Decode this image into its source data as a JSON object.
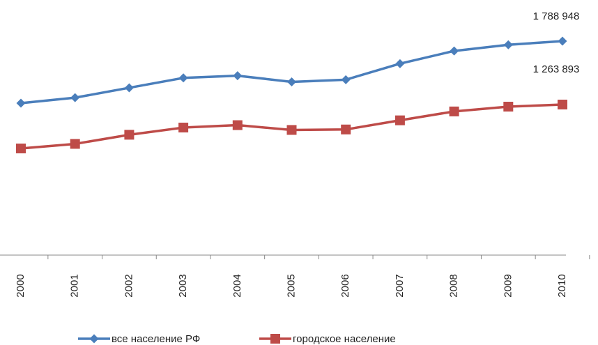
{
  "chart_data": {
    "type": "line",
    "title": "",
    "xlabel": "",
    "ylabel": "",
    "categories": [
      "2000",
      "2001",
      "2002",
      "2003",
      "2004",
      "2005",
      "2006",
      "2007",
      "2008",
      "2009",
      "2010"
    ],
    "series": [
      {
        "name": "все население РФ",
        "color": "#4a7ebb",
        "marker": "diamond",
        "values": [
          1390000,
          1415000,
          1460000,
          1505000,
          1515000,
          1487000,
          1497000,
          1570000,
          1628000,
          1656000,
          1788948
        ],
        "end_label": "1 788 948"
      },
      {
        "name": "городское население",
        "color": "#be4b48",
        "marker": "square",
        "values": [
          1188000,
          1207000,
          1245000,
          1275000,
          1285000,
          1265000,
          1267000,
          1305000,
          1342000,
          1362000,
          1263893
        ],
        "end_label": "1 263 893"
      }
    ],
    "legend_position": "bottom",
    "grid": false,
    "y_axis_visible": false
  }
}
